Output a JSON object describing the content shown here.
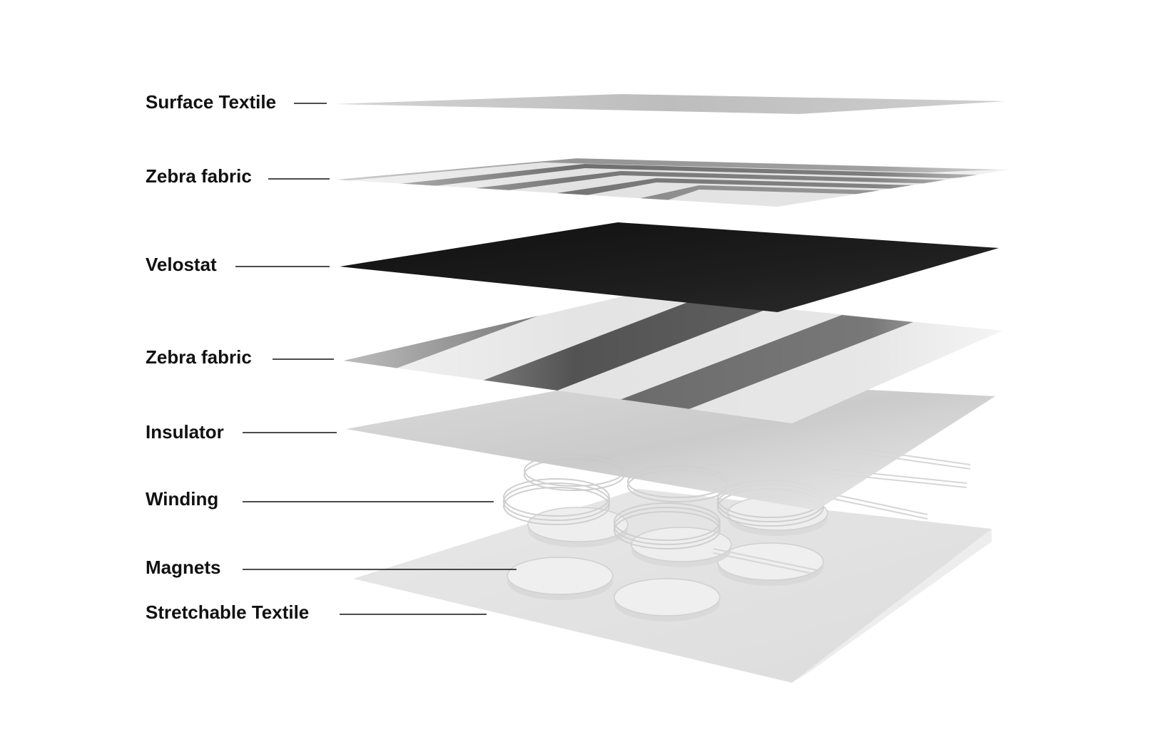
{
  "layers": [
    {
      "id": "surface-textile",
      "label": "Surface Textile"
    },
    {
      "id": "zebra-fabric-top",
      "label": "Zebra fabric"
    },
    {
      "id": "velostat",
      "label": "Velostat"
    },
    {
      "id": "zebra-fabric-bottom",
      "label": "Zebra fabric"
    },
    {
      "id": "insulator",
      "label": "Insulator"
    },
    {
      "id": "winding",
      "label": "Winding"
    },
    {
      "id": "magnets",
      "label": "Magnets"
    },
    {
      "id": "stretchable-textile",
      "label": "Stretchable Textile"
    }
  ],
  "colors": {
    "label_text": "#111111",
    "velostat": "#161616",
    "surface_textile": "#c4c4c4",
    "zebra_dark": "#3a3a3a",
    "zebra_light": "#e2e2e2",
    "insulator": "#cfcfcf",
    "stretchable_textile": "#e3e3e3",
    "magnet": "#ececec"
  }
}
